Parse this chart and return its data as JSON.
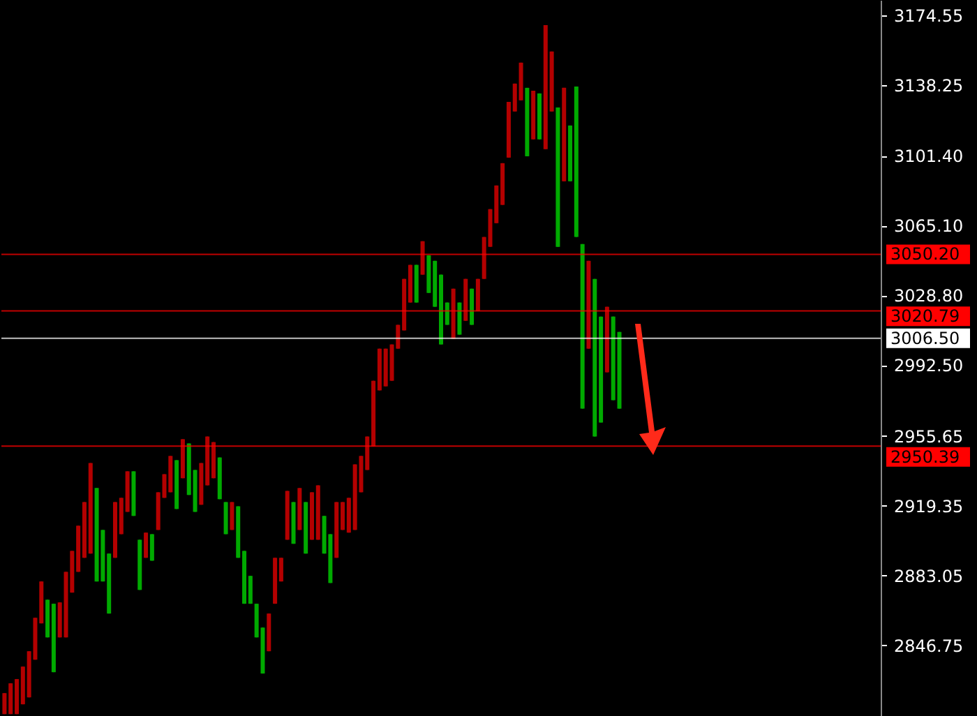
{
  "chart_data": {
    "type": "candlestick",
    "categories": [
      null,
      null,
      null,
      null,
      null,
      null,
      null,
      null,
      null,
      null,
      null,
      null,
      null,
      null,
      null,
      null,
      null,
      null,
      null,
      null,
      null,
      null,
      null,
      null,
      null,
      null,
      null,
      null,
      null,
      null,
      null,
      null,
      null,
      null,
      null,
      null,
      null,
      null,
      null,
      null,
      null,
      null,
      null,
      null,
      null,
      null,
      null,
      null,
      null,
      null,
      null,
      null,
      null,
      null,
      null,
      null,
      null,
      null,
      null,
      null,
      null,
      null,
      null,
      null,
      null,
      null,
      null,
      null,
      null,
      null,
      null,
      null,
      null,
      null,
      null,
      null,
      null,
      null,
      null,
      null,
      null,
      null,
      null,
      null,
      null,
      null,
      null,
      null,
      null,
      null,
      null,
      null,
      null,
      null,
      null,
      null,
      null,
      null,
      null,
      null,
      null,
      null,
      null,
      null,
      null,
      null,
      null,
      null,
      null,
      null,
      null,
      null,
      null,
      null,
      null,
      null,
      null,
      null,
      null,
      null,
      null,
      null,
      null,
      null,
      null,
      null,
      null,
      null,
      null,
      null,
      null,
      null,
      null,
      null,
      null,
      null,
      null,
      null,
      null,
      null,
      null,
      null,
      null
    ],
    "ohlc": [
      [
        2811.0,
        2821.9,
        2811.0,
        2821.9
      ],
      [
        2811.0,
        2827.0,
        2811.0,
        2827.0
      ],
      [
        2811.0,
        2829.2,
        2811.0,
        2829.2
      ],
      [
        2816.1,
        2835.7,
        2816.1,
        2835.7
      ],
      [
        2819.7,
        2843.7,
        2819.7,
        2843.7
      ],
      [
        2839.3,
        2861.1,
        2839.3,
        2861.1
      ],
      [
        2858.2,
        2880.0,
        2858.2,
        2880.0
      ],
      [
        2870.5,
        2870.5,
        2850.9,
        2850.9
      ],
      [
        2868.4,
        2868.4,
        2832.8,
        2832.8
      ],
      [
        2850.9,
        2869.1,
        2850.9,
        2869.1
      ],
      [
        2850.9,
        2885.0,
        2850.9,
        2885.0
      ],
      [
        2874.2,
        2895.9,
        2874.2,
        2895.9
      ],
      [
        2885.0,
        2909.0,
        2885.0,
        2909.0
      ],
      [
        2892.3,
        2921.3,
        2892.3,
        2921.3
      ],
      [
        2894.5,
        2941.6,
        2894.5,
        2941.6
      ],
      [
        2928.6,
        2928.6,
        2880.0,
        2880.0
      ],
      [
        2906.8,
        2906.8,
        2880.0,
        2880.0
      ],
      [
        2894.5,
        2894.5,
        2863.3,
        2863.3
      ],
      [
        2892.3,
        2921.3,
        2892.3,
        2921.3
      ],
      [
        2904.6,
        2923.5,
        2904.6,
        2923.5
      ],
      [
        2916.2,
        2937.3,
        2916.2,
        2937.3
      ],
      [
        2937.3,
        2937.3,
        2914.1,
        2914.1
      ],
      [
        2901.7,
        2901.7,
        2875.6,
        2875.6
      ],
      [
        2892.3,
        2905.4,
        2892.3,
        2905.4
      ],
      [
        2904.6,
        2904.6,
        2890.8,
        2890.8
      ],
      [
        2906.8,
        2926.4,
        2906.8,
        2926.4
      ],
      [
        2923.5,
        2935.8,
        2923.5,
        2935.8
      ],
      [
        2926.4,
        2945.3,
        2926.4,
        2945.3
      ],
      [
        2943.1,
        2943.1,
        2917.7,
        2917.7
      ],
      [
        2933.7,
        2954.0,
        2933.7,
        2954.0
      ],
      [
        2951.8,
        2951.8,
        2925.0,
        2925.0
      ],
      [
        2938.0,
        2938.0,
        2916.2,
        2916.2
      ],
      [
        2919.9,
        2941.6,
        2919.9,
        2941.6
      ],
      [
        2930.0,
        2955.4,
        2930.0,
        2955.4
      ],
      [
        2933.7,
        2952.5,
        2933.7,
        2952.5
      ],
      [
        2944.5,
        2944.5,
        2922.8,
        2922.8
      ],
      [
        2921.3,
        2921.3,
        2904.6,
        2904.6
      ],
      [
        2906.8,
        2921.3,
        2906.8,
        2921.3
      ],
      [
        2919.1,
        2919.1,
        2892.3,
        2892.3
      ],
      [
        2895.9,
        2895.9,
        2868.4,
        2868.4
      ],
      [
        2882.9,
        2882.9,
        2868.4,
        2868.4
      ],
      [
        2868.4,
        2868.4,
        2850.9,
        2850.9
      ],
      [
        2856.0,
        2856.0,
        2832.1,
        2832.1
      ],
      [
        2843.7,
        2863.3,
        2843.7,
        2863.3
      ],
      [
        2868.4,
        2892.3,
        2868.4,
        2892.3
      ],
      [
        2880.0,
        2892.3,
        2880.0,
        2892.3
      ],
      [
        2901.7,
        2927.1,
        2901.7,
        2927.1
      ],
      [
        2921.3,
        2921.3,
        2899.6,
        2899.6
      ],
      [
        2906.8,
        2928.6,
        2906.8,
        2928.6
      ],
      [
        2921.3,
        2921.3,
        2894.5,
        2894.5
      ],
      [
        2901.7,
        2926.4,
        2901.7,
        2926.4
      ],
      [
        2901.7,
        2930.0,
        2901.7,
        2930.0
      ],
      [
        2914.1,
        2914.1,
        2894.5,
        2894.5
      ],
      [
        2904.6,
        2904.6,
        2879.2,
        2879.2
      ],
      [
        2892.3,
        2921.3,
        2892.3,
        2921.3
      ],
      [
        2906.8,
        2921.3,
        2906.8,
        2921.3
      ],
      [
        2905.4,
        2923.5,
        2905.4,
        2923.5
      ],
      [
        2906.8,
        2940.9,
        2906.8,
        2940.9
      ],
      [
        2926.4,
        2945.3,
        2926.4,
        2945.3
      ],
      [
        2938.0,
        2955.4,
        2938.0,
        2955.4
      ],
      [
        2950.3,
        2984.4,
        2950.3,
        2984.4
      ],
      [
        2979.4,
        3001.1,
        2979.4,
        3001.1
      ],
      [
        2981.5,
        3001.1,
        2981.5,
        3001.1
      ],
      [
        2984.4,
        3003.3,
        2984.4,
        3003.3
      ],
      [
        3001.1,
        3013.5,
        3001.1,
        3013.5
      ],
      [
        3010.6,
        3037.4,
        3010.6,
        3037.4
      ],
      [
        3025.1,
        3044.7,
        3025.1,
        3044.7
      ],
      [
        3044.7,
        3044.7,
        3025.1,
        3025.1
      ],
      [
        3039.6,
        3057.0,
        3039.6,
        3057.0
      ],
      [
        3049.7,
        3049.7,
        3030.1,
        3030.1
      ],
      [
        3046.8,
        3046.8,
        3022.9,
        3022.9
      ],
      [
        3039.6,
        3039.6,
        3003.3,
        3003.3
      ],
      [
        3025.1,
        3025.1,
        3013.5,
        3013.5
      ],
      [
        3006.2,
        3032.3,
        3006.2,
        3032.3
      ],
      [
        3025.1,
        3025.1,
        3008.4,
        3008.4
      ],
      [
        3015.6,
        3037.4,
        3015.6,
        3037.4
      ],
      [
        3032.3,
        3032.3,
        3013.5,
        3013.5
      ],
      [
        3020.7,
        3037.4,
        3020.7,
        3037.4
      ],
      [
        3037.4,
        3059.2,
        3037.4,
        3059.2
      ],
      [
        3054.1,
        3073.7,
        3054.1,
        3073.7
      ],
      [
        3066.4,
        3086.0,
        3066.4,
        3086.0
      ],
      [
        3075.9,
        3097.6,
        3075.9,
        3097.6
      ],
      [
        3100.5,
        3129.5,
        3100.5,
        3129.5
      ],
      [
        3124.5,
        3139.0,
        3124.5,
        3139.0
      ],
      [
        3130.3,
        3149.9,
        3130.3,
        3149.9
      ],
      [
        3136.8,
        3136.8,
        3101.2,
        3101.2
      ],
      [
        3110.0,
        3135.3,
        3110.0,
        3135.3
      ],
      [
        3133.9,
        3133.9,
        3110.0,
        3110.0
      ],
      [
        3104.9,
        3169.4,
        3104.9,
        3169.4
      ],
      [
        3124.5,
        3155.7,
        3124.5,
        3155.7
      ],
      [
        3126.6,
        3126.6,
        3054.1,
        3054.1
      ],
      [
        3088.2,
        3136.8,
        3088.2,
        3136.8
      ],
      [
        3117.2,
        3117.2,
        3088.2,
        3088.2
      ],
      [
        3137.5,
        3137.5,
        3059.2,
        3059.2
      ],
      [
        3055.5,
        3055.5,
        2969.9,
        2969.9
      ],
      [
        3001.1,
        3046.8,
        3001.1,
        3046.8
      ],
      [
        3037.4,
        3037.4,
        2955.4,
        2955.4
      ],
      [
        3017.8,
        3017.8,
        2962.7,
        2962.7
      ],
      [
        2988.8,
        3022.9,
        2988.8,
        3022.9
      ],
      [
        3017.8,
        3017.8,
        2974.3,
        2974.3
      ],
      [
        3009.8,
        3009.8,
        2969.9,
        2969.9
      ],
      null,
      null,
      null,
      null,
      null,
      null,
      null,
      null,
      null,
      null,
      null,
      null,
      null,
      null,
      null,
      null,
      null,
      null,
      null,
      null,
      null,
      null,
      null,
      null,
      null,
      null,
      null,
      null,
      null,
      null,
      null,
      null,
      null,
      null,
      null,
      null,
      null,
      null,
      null,
      null,
      null,
      null
    ],
    "colors": [
      "#b40000",
      "#b40000",
      "#b40000",
      "#b40000",
      "#b40000",
      "#b40000",
      "#b40000",
      "#00aa00",
      "#00aa00",
      "#b40000",
      "#b40000",
      "#b40000",
      "#b40000",
      "#b40000",
      "#b40000",
      "#00aa00",
      "#00aa00",
      "#00aa00",
      "#b40000",
      "#b40000",
      "#b40000",
      "#00aa00",
      "#00aa00",
      "#b40000",
      "#00aa00",
      "#b40000",
      "#b40000",
      "#b40000",
      "#00aa00",
      "#b40000",
      "#00aa00",
      "#00aa00",
      "#b40000",
      "#b40000",
      "#b40000",
      "#00aa00",
      "#00aa00",
      "#b40000",
      "#00aa00",
      "#00aa00",
      "#00aa00",
      "#00aa00",
      "#00aa00",
      "#b40000",
      "#b40000",
      "#b40000",
      "#b40000",
      "#00aa00",
      "#b40000",
      "#00aa00",
      "#b40000",
      "#b40000",
      "#00aa00",
      "#00aa00",
      "#b40000",
      "#b40000",
      "#b40000",
      "#b40000",
      "#b40000",
      "#b40000",
      "#b40000",
      "#b40000",
      "#b40000",
      "#b40000",
      "#b40000",
      "#b40000",
      "#b40000",
      "#00aa00",
      "#b40000",
      "#00aa00",
      "#00aa00",
      "#00aa00",
      "#00aa00",
      "#b40000",
      "#00aa00",
      "#b40000",
      "#00aa00",
      "#b40000",
      "#b40000",
      "#b40000",
      "#b40000",
      "#b40000",
      "#b40000",
      "#b40000",
      "#b40000",
      "#00aa00",
      "#b40000",
      "#00aa00",
      "#b40000",
      "#b40000",
      "#00aa00",
      "#b40000",
      "#00aa00",
      "#00aa00",
      "#00aa00",
      "#b40000",
      "#00aa00",
      "#00aa00",
      "#b40000",
      "#00aa00",
      "#00aa00",
      null,
      null,
      null,
      null,
      null,
      null,
      null,
      null,
      null,
      null,
      null,
      null,
      null,
      null,
      null,
      null,
      null,
      null,
      null,
      null,
      null,
      null,
      null,
      null,
      null,
      null,
      null,
      null,
      null,
      null,
      null,
      null,
      null,
      null,
      null,
      null,
      null,
      null,
      null,
      null,
      null,
      null
    ],
    "ylim": [
      2810,
      3182.5
    ],
    "yticks": [
      2846.75,
      2883.05,
      2919.35,
      2955.65,
      {
        "value": 2992.5,
        "label": "2992.50"
      },
      {
        "value": 3028.8,
        "label": "3028.80"
      },
      {
        "value": 3065.1,
        "label": "3065.10"
      },
      {
        "value": 3101.4,
        "label": "3101.40"
      },
      3138.25,
      3174.55
    ],
    "tick_labels": "y",
    "ref_lines": [
      {
        "axis": "y",
        "value": 3050.2,
        "label": "3050.20",
        "color": "#ff0000"
      },
      {
        "axis": "y",
        "value": 3020.79,
        "label": "3020.79",
        "color": "#ff0000"
      },
      {
        "axis": "y",
        "value": 3006.5,
        "label": "3006.50",
        "color": "#ffffff"
      },
      {
        "axis": "y",
        "value": 2950.39,
        "label": "2950.39",
        "color": "#ff0000"
      }
    ]
  }
}
